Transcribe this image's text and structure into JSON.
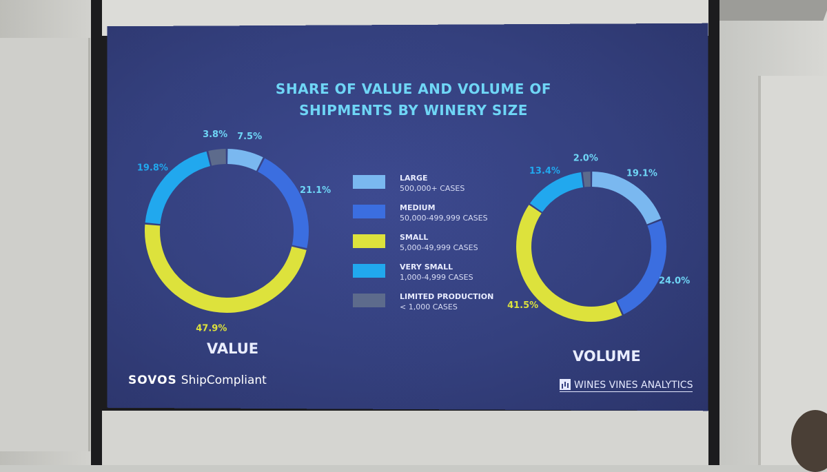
{
  "title_lines": [
    "SHARE OF VALUE AND VOLUME OF",
    "SHIPMENTS BY WINERY SIZE"
  ],
  "legend": [
    {
      "name": "LARGE",
      "desc": "500,000+ CASES",
      "color": "#7ab8f0"
    },
    {
      "name": "MEDIUM",
      "desc": "50,000-499,999 CASES",
      "color": "#3b6ee0"
    },
    {
      "name": "SMALL",
      "desc": "5,000-49,999 CASES",
      "color": "#dde23c"
    },
    {
      "name": "VERY SMALL",
      "desc": "1,000-4,999 CASES",
      "color": "#21a8ee"
    },
    {
      "name": "LIMITED PRODUCTION",
      "desc": "< 1,000 CASES",
      "color": "#5d6b8c"
    }
  ],
  "chart_data": [
    {
      "type": "pie",
      "subtype": "donut",
      "caption": "VALUE",
      "categories": [
        "LARGE",
        "MEDIUM",
        "SMALL",
        "VERY SMALL",
        "LIMITED PRODUCTION"
      ],
      "values": [
        7.5,
        21.1,
        47.9,
        19.8,
        3.8
      ],
      "labels": [
        "7.5%",
        "21.1%",
        "47.9%",
        "19.8%",
        "3.8%"
      ],
      "label_colors": [
        "#6fd6f6",
        "#6fd6f6",
        "#dde23c",
        "#21a8ee",
        "#6fd6f6"
      ]
    },
    {
      "type": "pie",
      "subtype": "donut",
      "caption": "VOLUME",
      "categories": [
        "LARGE",
        "MEDIUM",
        "SMALL",
        "VERY SMALL",
        "LIMITED PRODUCTION"
      ],
      "values": [
        19.1,
        24.0,
        41.5,
        13.4,
        2.0
      ],
      "labels": [
        "19.1%",
        "24.0%",
        "41.5%",
        "13.4%",
        "2.0%"
      ],
      "label_colors": [
        "#6fd6f6",
        "#6fd6f6",
        "#dde23c",
        "#21a8ee",
        "#6fd6f6"
      ]
    }
  ],
  "brand": {
    "left_bold": "SOVOS",
    "left_text": "ShipCompliant",
    "right_text": "WINES VINES ANALYTICS"
  }
}
